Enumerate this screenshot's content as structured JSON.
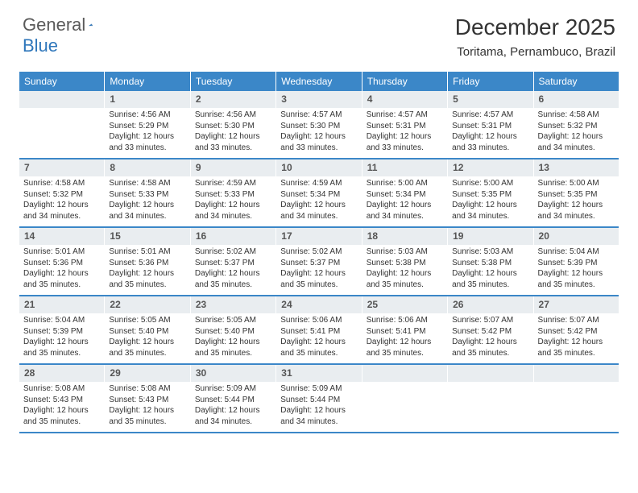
{
  "logo": {
    "general": "General",
    "blue": "Blue"
  },
  "title": "December 2025",
  "location": "Toritama, Pernambuco, Brazil",
  "colors": {
    "header_bg": "#3b87c8",
    "header_text": "#ffffff",
    "daynum_bg": "#e9edf0",
    "daynum_text": "#555555",
    "body_text": "#333333",
    "logo_gray": "#5a5a5a",
    "logo_blue": "#2f77bb",
    "divider": "#3b87c8"
  },
  "day_names": [
    "Sunday",
    "Monday",
    "Tuesday",
    "Wednesday",
    "Thursday",
    "Friday",
    "Saturday"
  ],
  "weeks": [
    [
      {
        "day": ""
      },
      {
        "day": "1",
        "sunrise": "Sunrise: 4:56 AM",
        "sunset": "Sunset: 5:29 PM",
        "daylight1": "Daylight: 12 hours",
        "daylight2": "and 33 minutes."
      },
      {
        "day": "2",
        "sunrise": "Sunrise: 4:56 AM",
        "sunset": "Sunset: 5:30 PM",
        "daylight1": "Daylight: 12 hours",
        "daylight2": "and 33 minutes."
      },
      {
        "day": "3",
        "sunrise": "Sunrise: 4:57 AM",
        "sunset": "Sunset: 5:30 PM",
        "daylight1": "Daylight: 12 hours",
        "daylight2": "and 33 minutes."
      },
      {
        "day": "4",
        "sunrise": "Sunrise: 4:57 AM",
        "sunset": "Sunset: 5:31 PM",
        "daylight1": "Daylight: 12 hours",
        "daylight2": "and 33 minutes."
      },
      {
        "day": "5",
        "sunrise": "Sunrise: 4:57 AM",
        "sunset": "Sunset: 5:31 PM",
        "daylight1": "Daylight: 12 hours",
        "daylight2": "and 33 minutes."
      },
      {
        "day": "6",
        "sunrise": "Sunrise: 4:58 AM",
        "sunset": "Sunset: 5:32 PM",
        "daylight1": "Daylight: 12 hours",
        "daylight2": "and 34 minutes."
      }
    ],
    [
      {
        "day": "7",
        "sunrise": "Sunrise: 4:58 AM",
        "sunset": "Sunset: 5:32 PM",
        "daylight1": "Daylight: 12 hours",
        "daylight2": "and 34 minutes."
      },
      {
        "day": "8",
        "sunrise": "Sunrise: 4:58 AM",
        "sunset": "Sunset: 5:33 PM",
        "daylight1": "Daylight: 12 hours",
        "daylight2": "and 34 minutes."
      },
      {
        "day": "9",
        "sunrise": "Sunrise: 4:59 AM",
        "sunset": "Sunset: 5:33 PM",
        "daylight1": "Daylight: 12 hours",
        "daylight2": "and 34 minutes."
      },
      {
        "day": "10",
        "sunrise": "Sunrise: 4:59 AM",
        "sunset": "Sunset: 5:34 PM",
        "daylight1": "Daylight: 12 hours",
        "daylight2": "and 34 minutes."
      },
      {
        "day": "11",
        "sunrise": "Sunrise: 5:00 AM",
        "sunset": "Sunset: 5:34 PM",
        "daylight1": "Daylight: 12 hours",
        "daylight2": "and 34 minutes."
      },
      {
        "day": "12",
        "sunrise": "Sunrise: 5:00 AM",
        "sunset": "Sunset: 5:35 PM",
        "daylight1": "Daylight: 12 hours",
        "daylight2": "and 34 minutes."
      },
      {
        "day": "13",
        "sunrise": "Sunrise: 5:00 AM",
        "sunset": "Sunset: 5:35 PM",
        "daylight1": "Daylight: 12 hours",
        "daylight2": "and 34 minutes."
      }
    ],
    [
      {
        "day": "14",
        "sunrise": "Sunrise: 5:01 AM",
        "sunset": "Sunset: 5:36 PM",
        "daylight1": "Daylight: 12 hours",
        "daylight2": "and 35 minutes."
      },
      {
        "day": "15",
        "sunrise": "Sunrise: 5:01 AM",
        "sunset": "Sunset: 5:36 PM",
        "daylight1": "Daylight: 12 hours",
        "daylight2": "and 35 minutes."
      },
      {
        "day": "16",
        "sunrise": "Sunrise: 5:02 AM",
        "sunset": "Sunset: 5:37 PM",
        "daylight1": "Daylight: 12 hours",
        "daylight2": "and 35 minutes."
      },
      {
        "day": "17",
        "sunrise": "Sunrise: 5:02 AM",
        "sunset": "Sunset: 5:37 PM",
        "daylight1": "Daylight: 12 hours",
        "daylight2": "and 35 minutes."
      },
      {
        "day": "18",
        "sunrise": "Sunrise: 5:03 AM",
        "sunset": "Sunset: 5:38 PM",
        "daylight1": "Daylight: 12 hours",
        "daylight2": "and 35 minutes."
      },
      {
        "day": "19",
        "sunrise": "Sunrise: 5:03 AM",
        "sunset": "Sunset: 5:38 PM",
        "daylight1": "Daylight: 12 hours",
        "daylight2": "and 35 minutes."
      },
      {
        "day": "20",
        "sunrise": "Sunrise: 5:04 AM",
        "sunset": "Sunset: 5:39 PM",
        "daylight1": "Daylight: 12 hours",
        "daylight2": "and 35 minutes."
      }
    ],
    [
      {
        "day": "21",
        "sunrise": "Sunrise: 5:04 AM",
        "sunset": "Sunset: 5:39 PM",
        "daylight1": "Daylight: 12 hours",
        "daylight2": "and 35 minutes."
      },
      {
        "day": "22",
        "sunrise": "Sunrise: 5:05 AM",
        "sunset": "Sunset: 5:40 PM",
        "daylight1": "Daylight: 12 hours",
        "daylight2": "and 35 minutes."
      },
      {
        "day": "23",
        "sunrise": "Sunrise: 5:05 AM",
        "sunset": "Sunset: 5:40 PM",
        "daylight1": "Daylight: 12 hours",
        "daylight2": "and 35 minutes."
      },
      {
        "day": "24",
        "sunrise": "Sunrise: 5:06 AM",
        "sunset": "Sunset: 5:41 PM",
        "daylight1": "Daylight: 12 hours",
        "daylight2": "and 35 minutes."
      },
      {
        "day": "25",
        "sunrise": "Sunrise: 5:06 AM",
        "sunset": "Sunset: 5:41 PM",
        "daylight1": "Daylight: 12 hours",
        "daylight2": "and 35 minutes."
      },
      {
        "day": "26",
        "sunrise": "Sunrise: 5:07 AM",
        "sunset": "Sunset: 5:42 PM",
        "daylight1": "Daylight: 12 hours",
        "daylight2": "and 35 minutes."
      },
      {
        "day": "27",
        "sunrise": "Sunrise: 5:07 AM",
        "sunset": "Sunset: 5:42 PM",
        "daylight1": "Daylight: 12 hours",
        "daylight2": "and 35 minutes."
      }
    ],
    [
      {
        "day": "28",
        "sunrise": "Sunrise: 5:08 AM",
        "sunset": "Sunset: 5:43 PM",
        "daylight1": "Daylight: 12 hours",
        "daylight2": "and 35 minutes."
      },
      {
        "day": "29",
        "sunrise": "Sunrise: 5:08 AM",
        "sunset": "Sunset: 5:43 PM",
        "daylight1": "Daylight: 12 hours",
        "daylight2": "and 35 minutes."
      },
      {
        "day": "30",
        "sunrise": "Sunrise: 5:09 AM",
        "sunset": "Sunset: 5:44 PM",
        "daylight1": "Daylight: 12 hours",
        "daylight2": "and 34 minutes."
      },
      {
        "day": "31",
        "sunrise": "Sunrise: 5:09 AM",
        "sunset": "Sunset: 5:44 PM",
        "daylight1": "Daylight: 12 hours",
        "daylight2": "and 34 minutes."
      },
      {
        "day": ""
      },
      {
        "day": ""
      },
      {
        "day": ""
      }
    ]
  ]
}
